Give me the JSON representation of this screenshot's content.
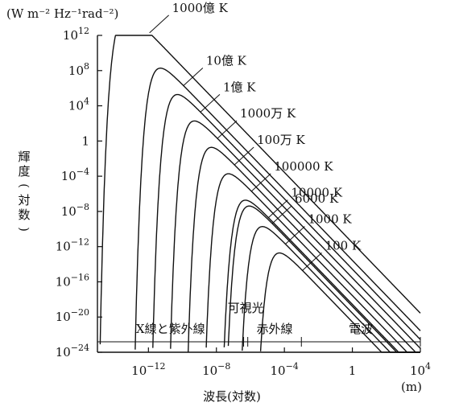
{
  "chart_data": {
    "type": "line",
    "ylabel": "輝度(対数)",
    "yunit": "(W m⁻² Hz⁻¹rad⁻²)",
    "xlabel": "波長(対数)",
    "xunit": "(m)",
    "xscale": "log",
    "yscale": "log",
    "xlim": [
      1e-15,
      10000.0
    ],
    "ylim": [
      1e-24,
      1000000000000.0
    ],
    "x_ticks": [
      {
        "value": 1e-12,
        "base": "10",
        "exp": "−12"
      },
      {
        "value": 1e-08,
        "base": "10",
        "exp": "−8"
      },
      {
        "value": 0.0001,
        "base": "10",
        "exp": "−4"
      },
      {
        "value": 1,
        "base": "1",
        "exp": ""
      },
      {
        "value": 10000.0,
        "base": "10",
        "exp": "4"
      }
    ],
    "y_ticks": [
      {
        "value": 1000000000000.0,
        "base": "10",
        "exp": "12"
      },
      {
        "value": 100000000.0,
        "base": "10",
        "exp": "8"
      },
      {
        "value": 10000.0,
        "base": "10",
        "exp": "4"
      },
      {
        "value": 1,
        "base": "1",
        "exp": ""
      },
      {
        "value": 0.0001,
        "base": "10",
        "exp": "−4"
      },
      {
        "value": 1e-08,
        "base": "10",
        "exp": "−8"
      },
      {
        "value": 1e-12,
        "base": "10",
        "exp": "−12"
      },
      {
        "value": 1e-16,
        "base": "10",
        "exp": "−16"
      },
      {
        "value": 1e-20,
        "base": "10",
        "exp": "−20"
      },
      {
        "value": 1e-24,
        "base": "10",
        "exp": "−24"
      }
    ],
    "series": [
      {
        "name": "1000億 K",
        "temperature": 100000000000.0
      },
      {
        "name": "10億 K",
        "temperature": 1000000000.0
      },
      {
        "name": "1億 K",
        "temperature": 100000000.0
      },
      {
        "name": "1000万 K",
        "temperature": 10000000.0
      },
      {
        "name": "100万 K",
        "temperature": 1000000.0
      },
      {
        "name": "100000 K",
        "temperature": 100000.0
      },
      {
        "name": "10000 K",
        "temperature": 10000.0
      },
      {
        "name": "6000 K",
        "temperature": 6000
      },
      {
        "name": "1000 K",
        "temperature": 1000
      },
      {
        "name": "100 K",
        "temperature": 100
      }
    ],
    "bands": [
      {
        "label": "X線と紫外線",
        "from": 1e-15,
        "to": 4e-07
      },
      {
        "label": "可視光",
        "from": 4e-07,
        "to": 7e-07
      },
      {
        "label": "赤外線",
        "from": 7e-07,
        "to": 0.001
      },
      {
        "label": "電波",
        "from": 0.001,
        "to": 10000.0
      }
    ]
  }
}
